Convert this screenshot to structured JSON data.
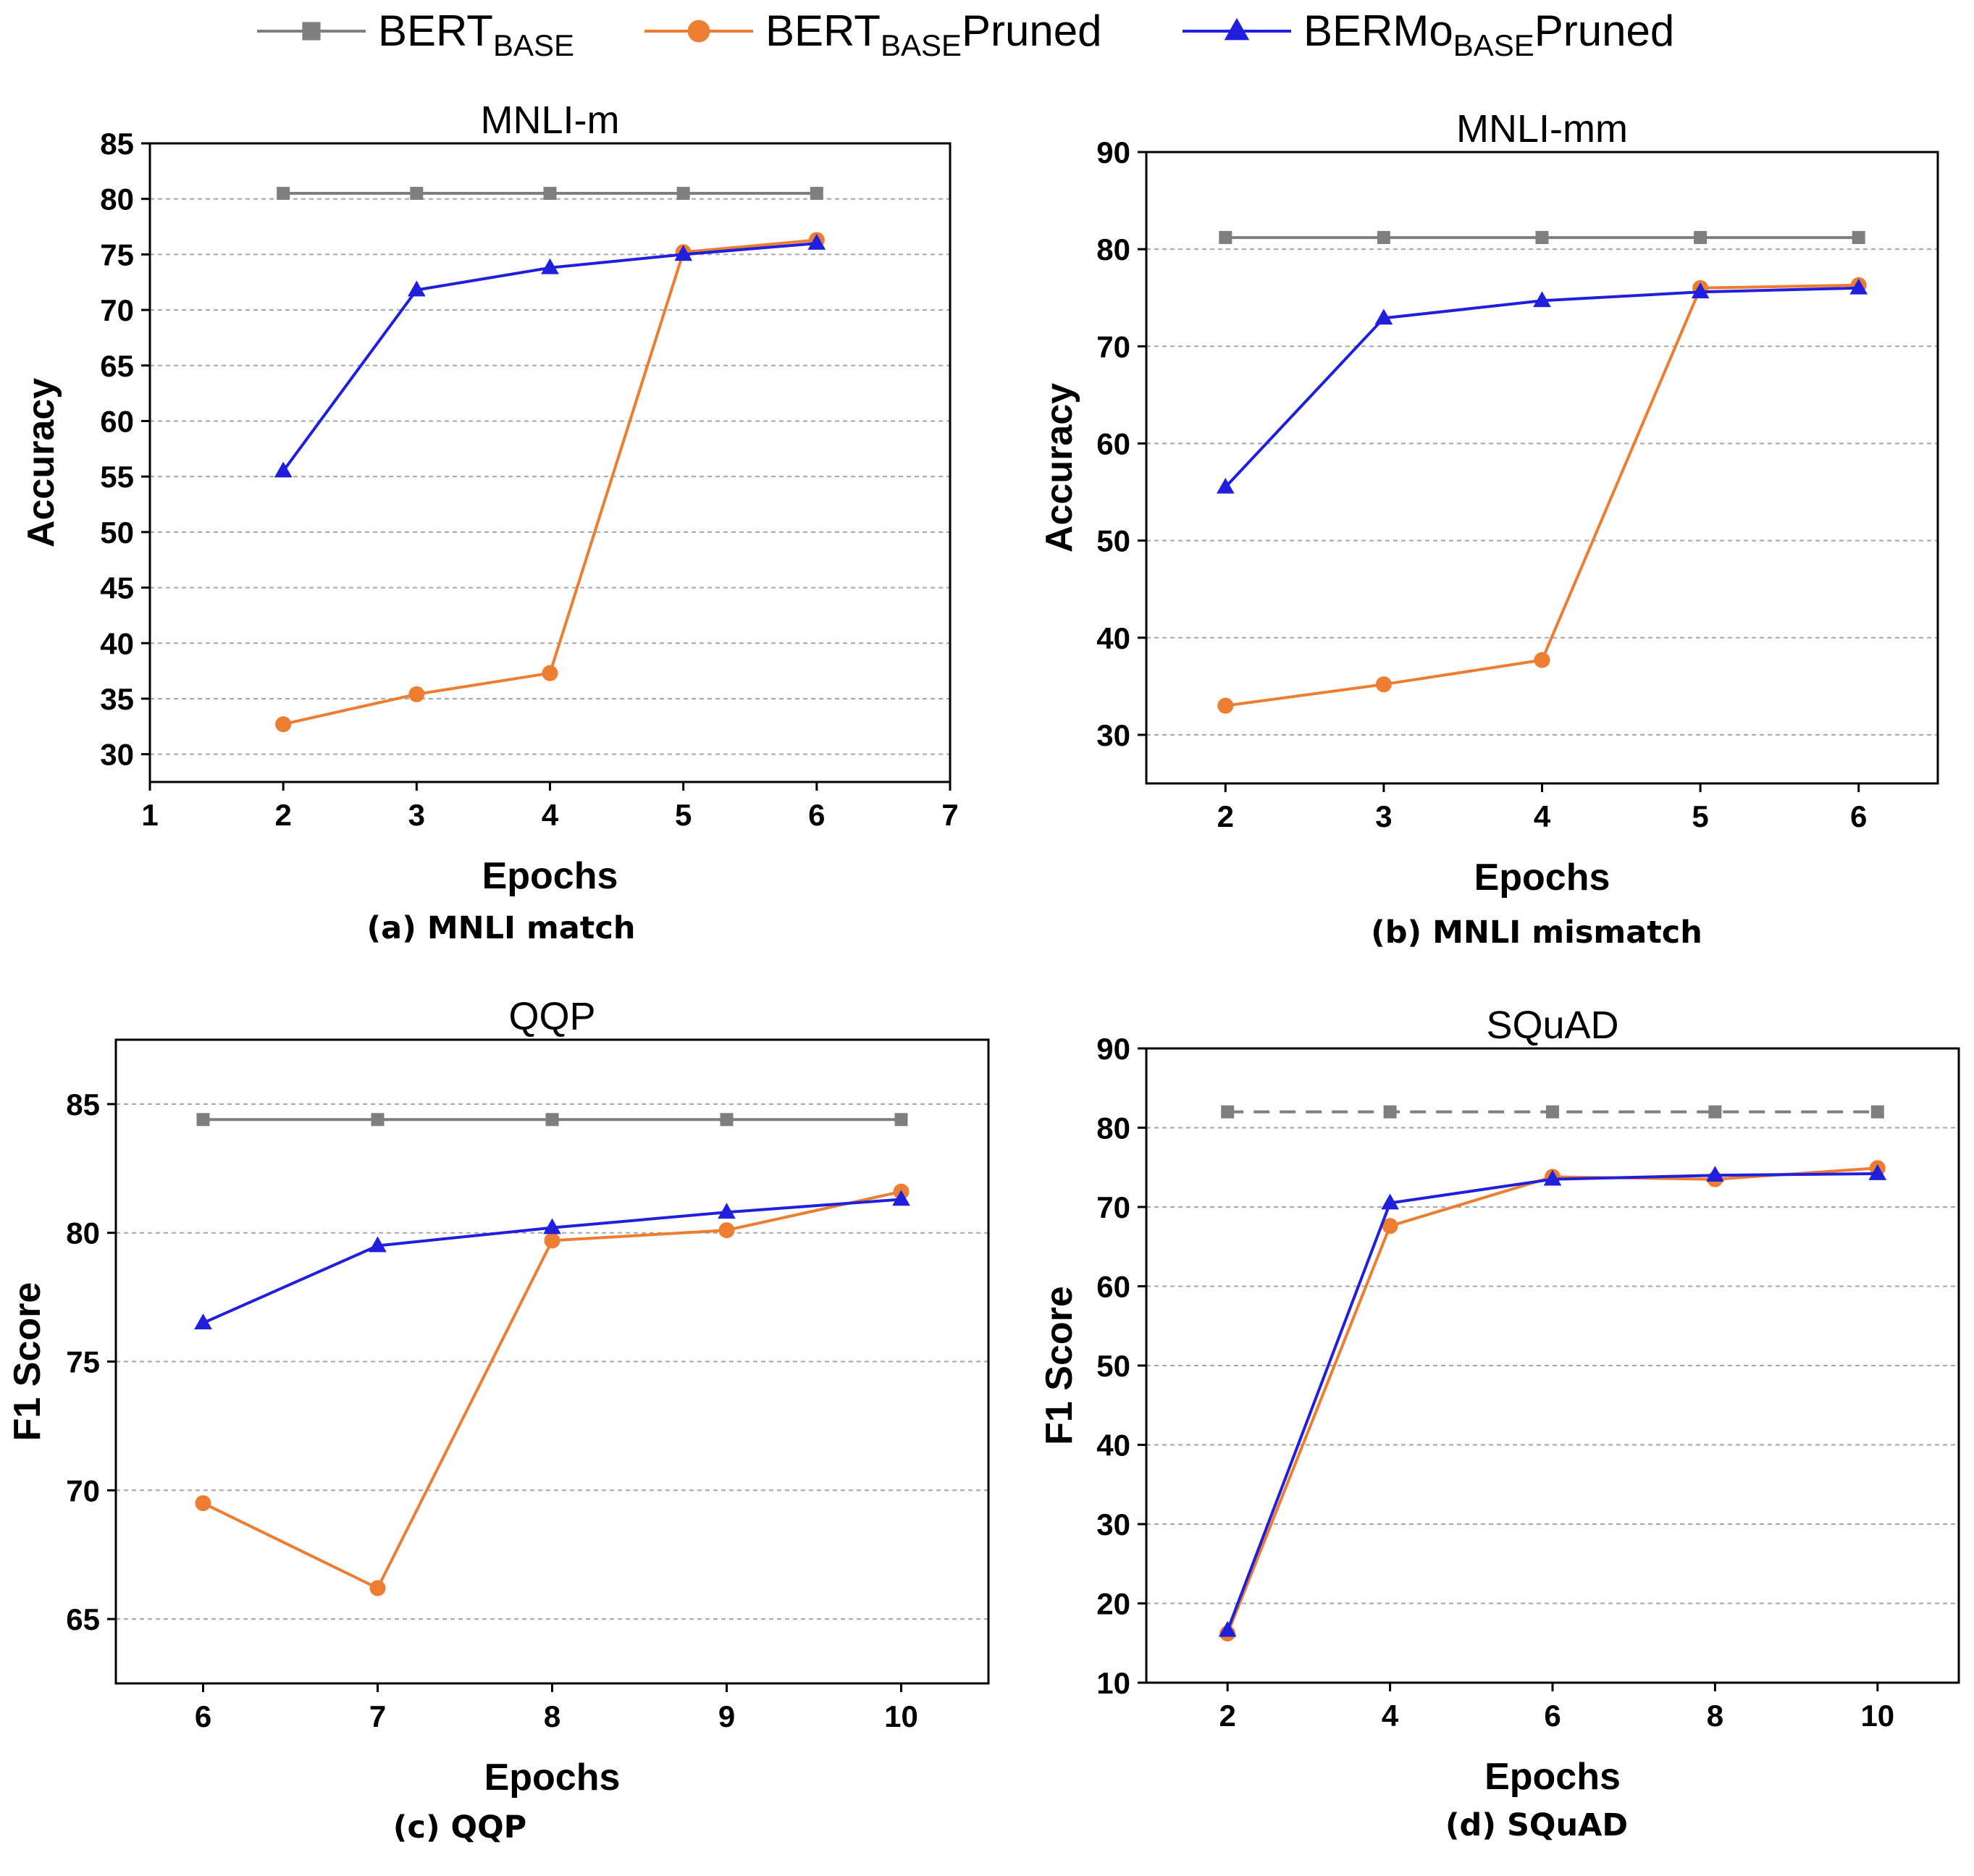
{
  "colors": {
    "bert": "#7f7f7f",
    "bert_pruned": "#ed7d31",
    "bermo_pruned": "#1f1fdd"
  },
  "legend": [
    {
      "key": "bert",
      "base": "BERT",
      "sub": "BASE",
      "suffix": "",
      "marker": "square"
    },
    {
      "key": "bert_pruned",
      "base": "BERT",
      "sub": "BASE",
      "suffix": "Pruned",
      "marker": "circle"
    },
    {
      "key": "bermo_pruned",
      "base": "BERMo",
      "sub": "BASE",
      "suffix": "Pruned",
      "marker": "triangle"
    }
  ],
  "chart_data": [
    {
      "type": "line",
      "title": "MNLI-m",
      "caption": "(a) MNLI match",
      "xlabel": "Epochs",
      "ylabel": "Accuracy",
      "xlim": [
        1,
        7
      ],
      "ylim": [
        27.5,
        85
      ],
      "xticks": [
        1,
        2,
        3,
        4,
        5,
        6,
        7
      ],
      "yticks": [
        30,
        35,
        40,
        45,
        50,
        55,
        60,
        65,
        70,
        75,
        80,
        85
      ],
      "x": [
        2,
        3,
        4,
        5,
        6
      ],
      "series": [
        {
          "key": "bert",
          "name": "BERT BASE",
          "values": [
            80.5,
            80.5,
            80.5,
            80.5,
            80.5
          ],
          "dashed": false
        },
        {
          "key": "bert_pruned",
          "name": "BERT BASE Pruned",
          "values": [
            32.7,
            35.4,
            37.3,
            75.2,
            76.3
          ],
          "dashed": false
        },
        {
          "key": "bermo_pruned",
          "name": "BERMo BASE Pruned",
          "values": [
            55.5,
            71.8,
            73.8,
            75.0,
            76.0
          ],
          "dashed": false
        }
      ]
    },
    {
      "type": "line",
      "title": "MNLI-mm",
      "caption": "(b) MNLI mismatch",
      "xlabel": "Epochs",
      "ylabel": "Accuracy",
      "xlim": [
        1.5,
        6.5
      ],
      "ylim": [
        25,
        90
      ],
      "xticks": [
        2,
        3,
        4,
        5,
        6
      ],
      "yticks": [
        30,
        40,
        50,
        60,
        70,
        80,
        90
      ],
      "x": [
        2,
        3,
        4,
        5,
        6
      ],
      "series": [
        {
          "key": "bert",
          "name": "BERT BASE",
          "values": [
            81.2,
            81.2,
            81.2,
            81.2,
            81.2
          ],
          "dashed": false
        },
        {
          "key": "bert_pruned",
          "name": "BERT BASE Pruned",
          "values": [
            33.0,
            35.2,
            37.7,
            76.0,
            76.3
          ],
          "dashed": false
        },
        {
          "key": "bermo_pruned",
          "name": "BERMo BASE Pruned",
          "values": [
            55.5,
            72.9,
            74.7,
            75.6,
            76.0
          ],
          "dashed": false
        }
      ]
    },
    {
      "type": "line",
      "title": "QQP",
      "caption": "(c) QQP",
      "xlabel": "Epochs",
      "ylabel": "F1 Score",
      "xlim": [
        5.5,
        10.5
      ],
      "ylim": [
        62.5,
        87.5
      ],
      "xticks": [
        6,
        7,
        8,
        9,
        10
      ],
      "yticks": [
        65,
        70,
        75,
        80,
        85
      ],
      "x": [
        6,
        7,
        8,
        9,
        10
      ],
      "series": [
        {
          "key": "bert",
          "name": "BERT BASE",
          "values": [
            84.4,
            84.4,
            84.4,
            84.4,
            84.4
          ],
          "dashed": false
        },
        {
          "key": "bert_pruned",
          "name": "BERT BASE Pruned",
          "values": [
            69.5,
            66.2,
            79.7,
            80.1,
            81.6
          ],
          "dashed": false
        },
        {
          "key": "bermo_pruned",
          "name": "BERMo BASE Pruned",
          "values": [
            76.5,
            79.5,
            80.2,
            80.8,
            81.3
          ],
          "dashed": false
        }
      ]
    },
    {
      "type": "line",
      "title": "SQuAD",
      "caption": "(d) SQuAD",
      "xlabel": "Epochs",
      "ylabel": "F1 Score",
      "xlim": [
        1,
        11
      ],
      "ylim": [
        10,
        90
      ],
      "xticks": [
        2,
        4,
        6,
        8,
        10
      ],
      "yticks": [
        10,
        20,
        30,
        40,
        50,
        60,
        70,
        80,
        90
      ],
      "x": [
        2,
        4,
        6,
        8,
        10
      ],
      "series": [
        {
          "key": "bert",
          "name": "BERT BASE",
          "values": [
            82.0,
            82.0,
            82.0,
            82.0,
            82.0
          ],
          "dashed": true
        },
        {
          "key": "bert_pruned",
          "name": "BERT BASE Pruned",
          "values": [
            16.2,
            67.6,
            73.8,
            73.5,
            74.9
          ],
          "dashed": false
        },
        {
          "key": "bermo_pruned",
          "name": "BERMo BASE Pruned",
          "values": [
            16.6,
            70.5,
            73.5,
            74.0,
            74.2
          ],
          "dashed": false
        }
      ]
    }
  ]
}
